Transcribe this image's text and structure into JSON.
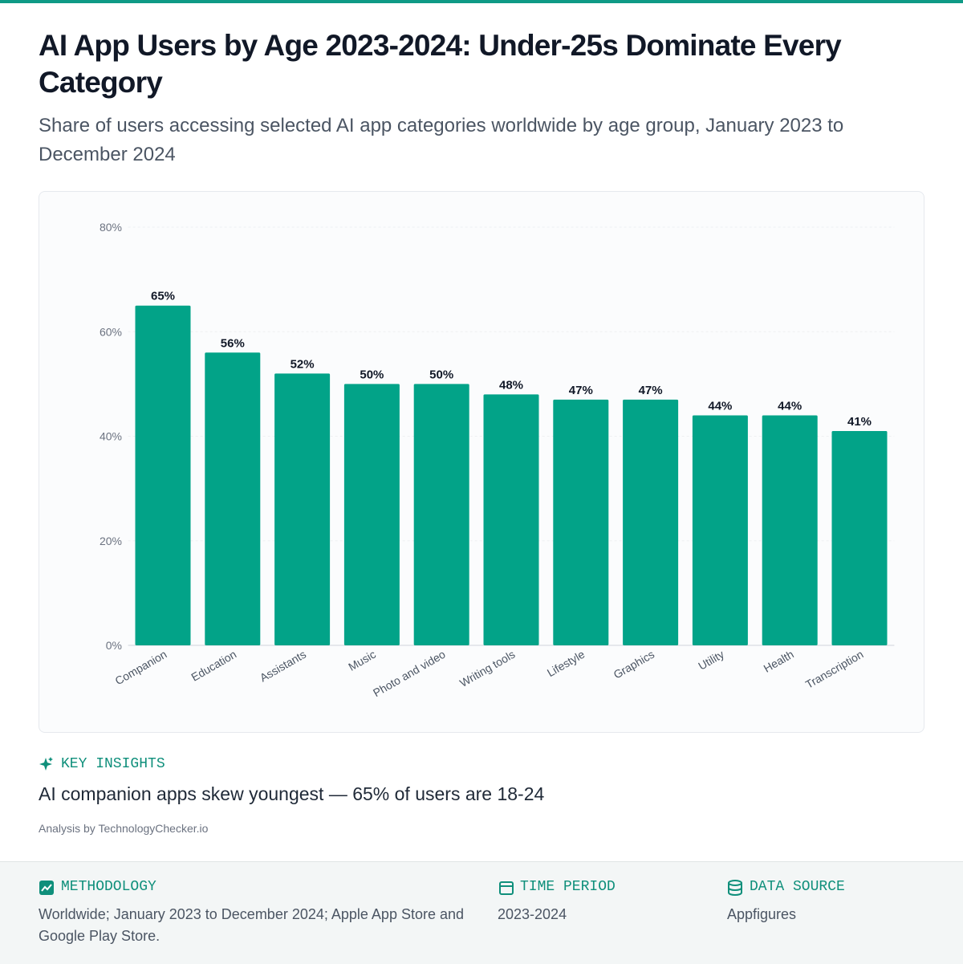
{
  "title": "AI App Users by Age 2023-2024: Under-25s Dominate Every Category",
  "subtitle": "Share of users accessing selected AI app categories worldwide by age group, January 2023 to December 2024",
  "chart_data": {
    "type": "bar",
    "categories": [
      "Companion",
      "Education",
      "Assistants",
      "Music",
      "Photo and video",
      "Writing tools",
      "Lifestyle",
      "Graphics",
      "Utility",
      "Health",
      "Transcription"
    ],
    "values": [
      65,
      56,
      52,
      50,
      50,
      48,
      47,
      47,
      44,
      44,
      41
    ],
    "value_labels": [
      "65%",
      "56%",
      "52%",
      "50%",
      "50%",
      "48%",
      "47%",
      "47%",
      "44%",
      "44%",
      "41%"
    ],
    "color": "#02a388",
    "ylim": [
      0,
      80
    ],
    "yticks": [
      {
        "value": 0,
        "label": "0%"
      },
      {
        "value": 20,
        "label": "20%"
      },
      {
        "value": 40,
        "label": "40%"
      },
      {
        "value": 60,
        "label": "60%"
      },
      {
        "value": 80,
        "label": "80%"
      }
    ],
    "grid": true
  },
  "insights": {
    "heading": "KEY INSIGHTS",
    "text": "AI companion apps skew youngest — 65% of users are 18-24",
    "credit": "Analysis by TechnologyChecker.io"
  },
  "footer": {
    "methodology": {
      "heading": "METHODOLOGY",
      "text": "Worldwide; January 2023 to December 2024; Apple App Store and Google Play Store."
    },
    "time_period": {
      "heading": "TIME PERIOD",
      "text": "2023-2024"
    },
    "data_source": {
      "heading": "DATA SOURCE",
      "text": "Appfigures"
    }
  }
}
